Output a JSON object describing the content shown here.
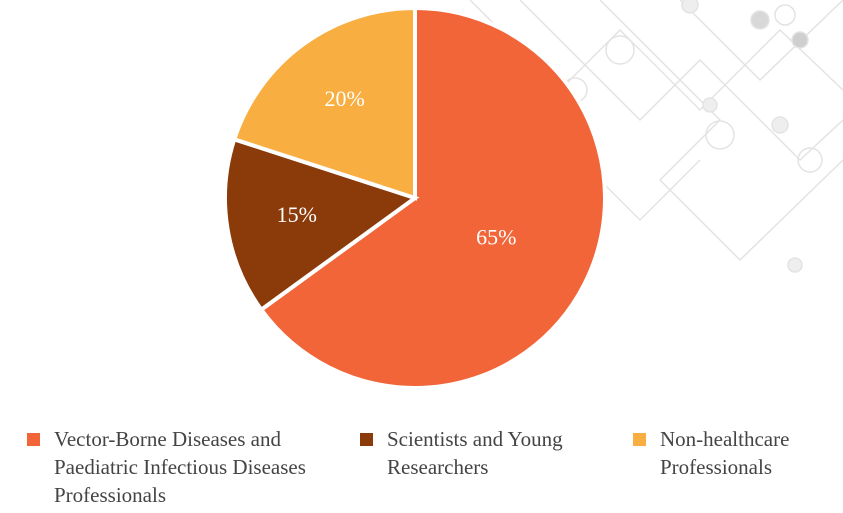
{
  "chart_data": {
    "type": "pie",
    "categories": [
      "Vector-Borne Diseases and Paediatric Infectious Diseases Professionals",
      "Scientists and Young Researchers",
      "Non-healthcare Professionals"
    ],
    "values": [
      65,
      15,
      20
    ],
    "value_labels": [
      "65%",
      "15%",
      "20%"
    ],
    "colors": [
      "#f26539",
      "#8b3a0a",
      "#f9ae42"
    ]
  }
}
